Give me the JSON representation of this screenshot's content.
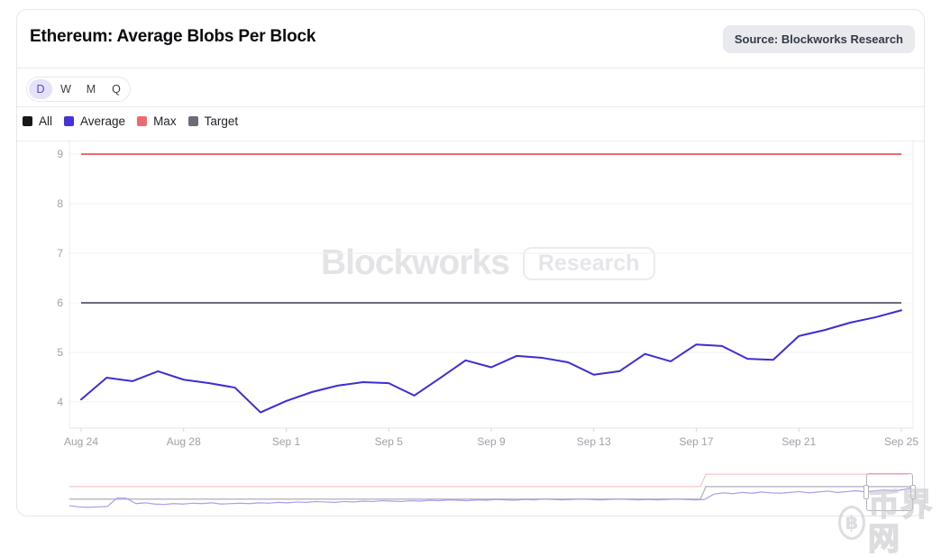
{
  "header": {
    "title": "Ethereum: Average Blobs Per Block",
    "source_badge": "Source: Blockworks Research"
  },
  "timeframe": {
    "options": [
      "D",
      "W",
      "M",
      "Q"
    ],
    "selected": "D"
  },
  "legend": [
    {
      "label": "All",
      "color": "#18181b"
    },
    {
      "label": "Average",
      "color": "#4333d8"
    },
    {
      "label": "Max",
      "color": "#ef6a6e"
    },
    {
      "label": "Target",
      "color": "#6e6a78"
    }
  ],
  "watermark": {
    "brand": "Blockworks",
    "sub": "Research",
    "corner_symbol": "฿",
    "corner_text": "币界网"
  },
  "chart_data": {
    "type": "line",
    "title": "Ethereum: Average Blobs Per Block",
    "xlabel": "",
    "ylabel": "",
    "grid": true,
    "legend_position": "top-left",
    "y_ticks": [
      4,
      5,
      6,
      7,
      8,
      9
    ],
    "ylim": [
      3.45,
      9.3
    ],
    "x_tick_labels": [
      "Aug 24",
      "Aug 28",
      "Sep 1",
      "Sep 5",
      "Sep 9",
      "Sep 13",
      "Sep 17",
      "Sep 21",
      "Sep 25"
    ],
    "dates": [
      "Aug 24",
      "Aug 25",
      "Aug 26",
      "Aug 27",
      "Aug 28",
      "Aug 29",
      "Aug 30",
      "Aug 31",
      "Sep 1",
      "Sep 2",
      "Sep 3",
      "Sep 4",
      "Sep 5",
      "Sep 6",
      "Sep 7",
      "Sep 8",
      "Sep 9",
      "Sep 10",
      "Sep 11",
      "Sep 12",
      "Sep 13",
      "Sep 14",
      "Sep 15",
      "Sep 16",
      "Sep 17",
      "Sep 18",
      "Sep 19",
      "Sep 20",
      "Sep 21",
      "Sep 22",
      "Sep 23",
      "Sep 24",
      "Sep 25"
    ],
    "series": [
      {
        "name": "Average",
        "color": "#3d2dd2",
        "values": [
          4.05,
          4.49,
          4.42,
          4.62,
          4.45,
          4.38,
          4.29,
          3.79,
          4.02,
          4.2,
          4.33,
          4.4,
          4.38,
          4.13,
          4.48,
          4.84,
          4.7,
          4.93,
          4.89,
          4.8,
          4.55,
          4.62,
          4.97,
          4.82,
          5.16,
          5.13,
          4.87,
          4.85,
          5.33,
          5.45,
          5.6,
          5.71,
          5.85
        ]
      },
      {
        "name": "Max",
        "color": "#ef6a6e",
        "constant": 9
      },
      {
        "name": "Target",
        "color": "#6e6a78",
        "constant": 6
      }
    ],
    "navigator": {
      "description": "full-history mini chart with brush on selected range",
      "step_fraction": 0.748,
      "max_levels": {
        "before": 6,
        "after": 9
      },
      "target_levels": {
        "before": 3,
        "after": 6
      },
      "colors": {
        "average": "#a79ef0",
        "max": "#f6b6ba",
        "target": "#bdbac4"
      },
      "average_values": [
        1.4,
        1.1,
        1.0,
        1.1,
        1.2,
        3.2,
        3.2,
        1.9,
        2.1,
        1.8,
        1.7,
        1.9,
        1.8,
        2.0,
        1.9,
        2.1,
        1.8,
        1.9,
        2.0,
        1.9,
        2.1,
        2.0,
        2.2,
        2.1,
        2.3,
        2.2,
        2.4,
        2.3,
        2.2,
        2.4,
        2.3,
        2.5,
        2.4,
        2.6,
        2.5,
        2.4,
        2.6,
        2.5,
        2.7,
        2.6,
        2.8,
        2.7,
        2.6,
        2.8,
        2.7,
        2.9,
        2.8,
        2.7,
        2.9,
        2.8,
        3.0,
        2.9,
        2.8,
        2.9,
        3.0,
        2.9,
        2.8,
        2.9,
        3.0,
        2.9,
        2.8,
        2.9,
        2.8,
        2.9,
        3.0,
        2.9,
        2.8,
        2.9,
        4.2,
        4.5,
        4.3,
        4.6,
        4.4,
        4.7,
        4.5,
        4.4,
        4.6,
        4.8,
        4.5,
        4.7,
        4.9,
        4.6,
        4.8,
        5.0,
        4.7,
        5.0,
        5.2,
        4.9,
        5.3,
        5.8
      ],
      "brush": {
        "start_fraction": 0.944,
        "end_fraction": 1.0
      }
    }
  }
}
